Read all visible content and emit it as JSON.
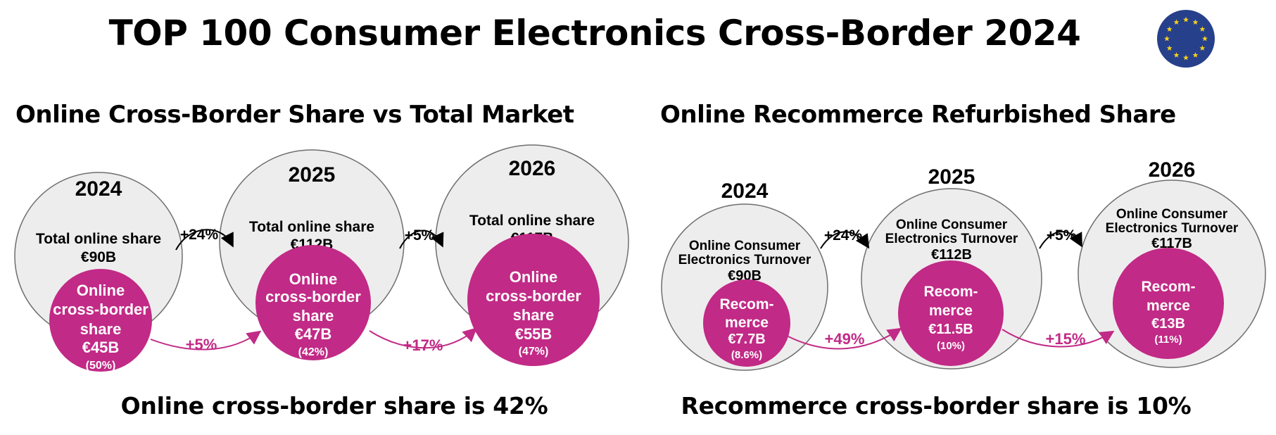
{
  "title": "TOP 100 Consumer Electronics Cross-Border 2024",
  "left_panel": {
    "heading": "Online Cross-Border Share vs Total Market",
    "footnote": "Online cross-border share is 42%",
    "years": [
      "2024",
      "2025",
      "2026"
    ],
    "outer": [
      {
        "lines": [
          "Total online share",
          "€90B"
        ]
      },
      {
        "lines": [
          "Total online share",
          "€112B"
        ]
      },
      {
        "lines": [
          "Total online share",
          "€117B"
        ]
      }
    ],
    "inner": [
      {
        "lines": [
          "Online",
          "cross-border",
          "share",
          "€45B",
          "(50%)"
        ]
      },
      {
        "lines": [
          "Online",
          "cross-border",
          "share",
          "€47B",
          "(42%)"
        ]
      },
      {
        "lines": [
          "Online",
          "cross-border",
          "share",
          "€55B",
          "(47%)"
        ]
      }
    ],
    "outer_growth": [
      "+24%",
      "+5%"
    ],
    "inner_growth": [
      "+5%",
      "+17%"
    ]
  },
  "right_panel": {
    "heading": "Online Recommerce Refurbished Share",
    "footnote": "Recommerce cross-border share is 10%",
    "years": [
      "2024",
      "2025",
      "2026"
    ],
    "outer": [
      {
        "lines": [
          "Online Consumer",
          "Electronics Turnover",
          "€90B"
        ]
      },
      {
        "lines": [
          "Online Consumer",
          "Electronics Turnover",
          "€112B"
        ]
      },
      {
        "lines": [
          "Online Consumer",
          "Electronics Turnover",
          "€117B"
        ]
      }
    ],
    "inner": [
      {
        "lines": [
          "Recom-",
          "merce",
          "€7.7B",
          "(8.6%)"
        ]
      },
      {
        "lines": [
          "Recom-",
          "merce",
          "€11.5B",
          "(10%)"
        ]
      },
      {
        "lines": [
          "Recom-",
          "merce",
          "€13B",
          "(11%)"
        ]
      }
    ],
    "outer_growth": [
      "+24%",
      "+5%"
    ],
    "inner_growth": [
      "+49%",
      "+15%"
    ]
  },
  "colors": {
    "magenta": "#C12A86",
    "outer_fill": "#EEEDED",
    "outer_stroke": "#6E6E6E",
    "flag_blue": "#27408B",
    "flag_star": "#F6D21C"
  },
  "icons": {
    "flag": "eu-flag-icon"
  }
}
